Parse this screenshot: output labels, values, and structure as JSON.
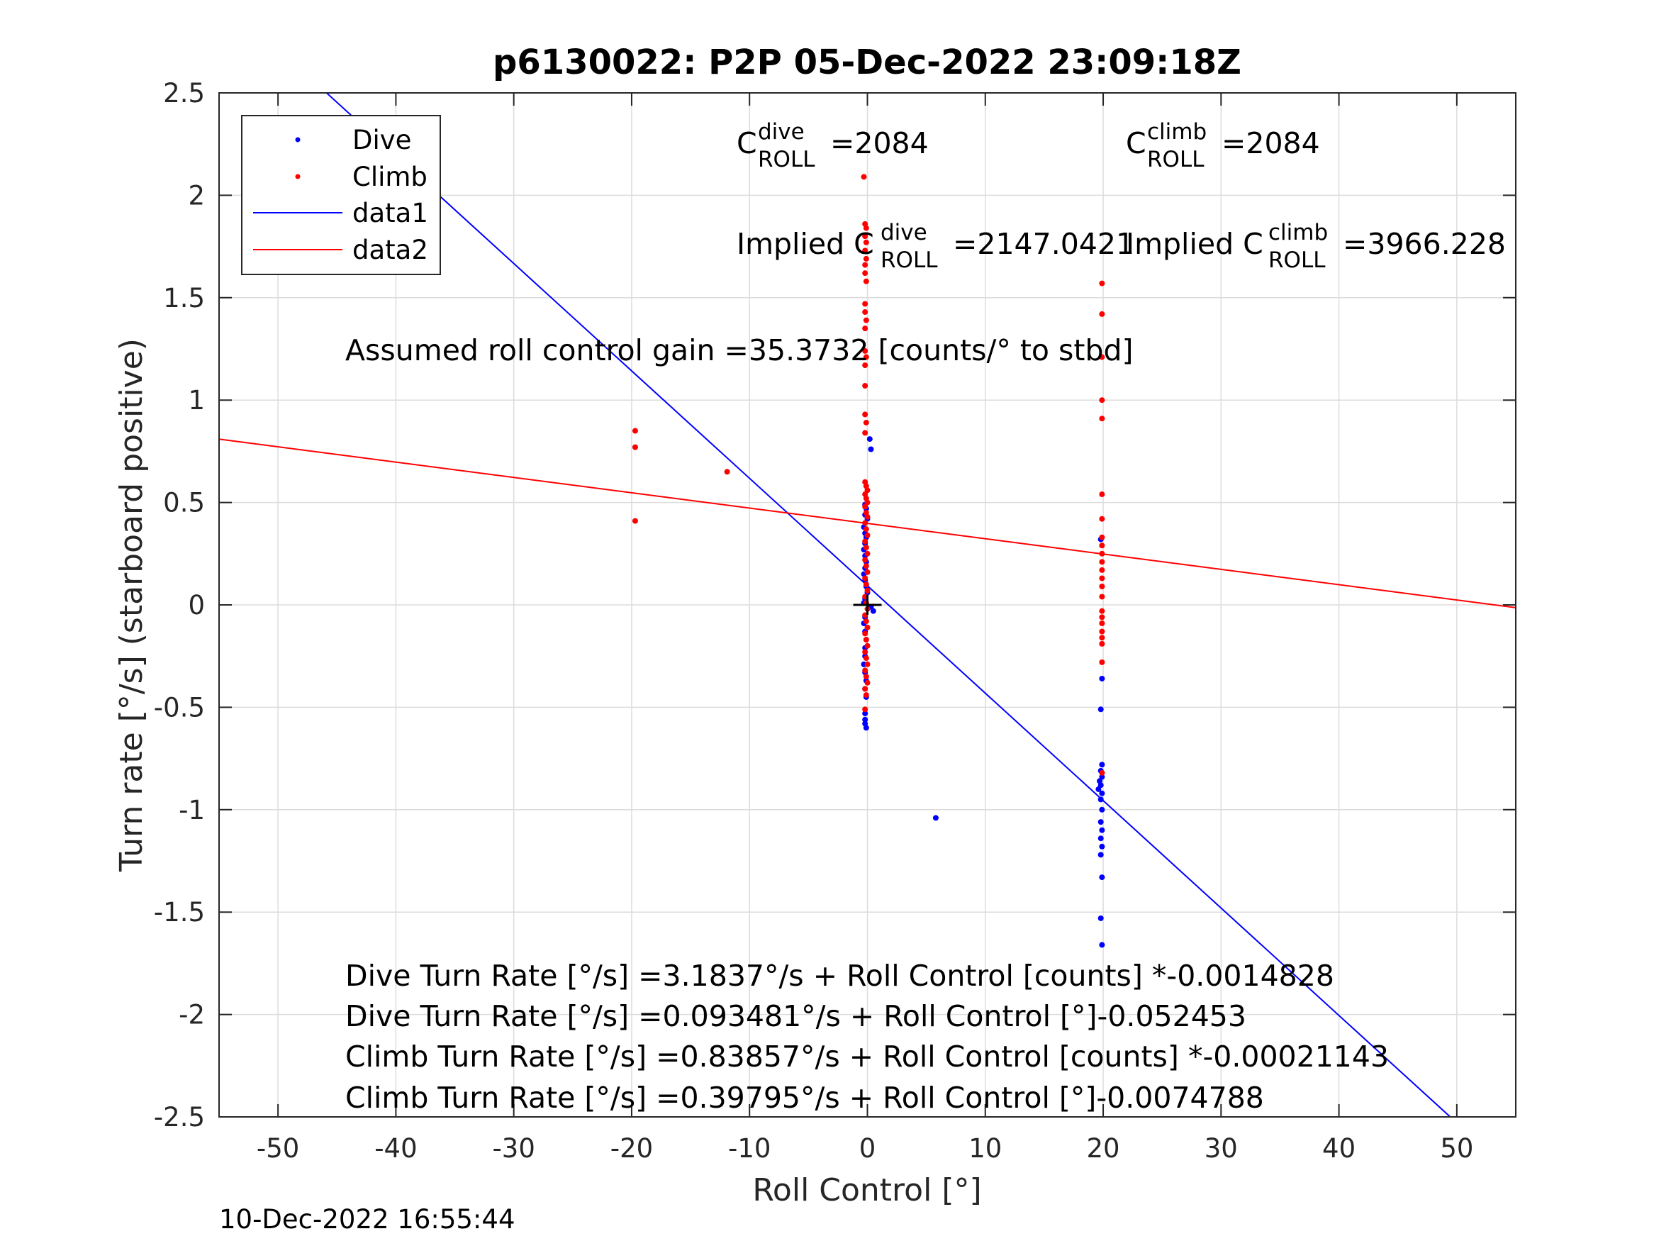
{
  "chart_data": {
    "type": "scatter",
    "title": "p6130022: P2P 05-Dec-2022 23:09:18Z",
    "xlabel": "Roll Control [°]",
    "ylabel": "Turn rate [°/s] (starboard positive)",
    "xlim": [
      -55,
      55
    ],
    "ylim": [
      -2.5,
      2.5
    ],
    "xticks": [
      -50,
      -40,
      -30,
      -20,
      -10,
      0,
      10,
      20,
      30,
      40,
      50
    ],
    "yticks": [
      2.5,
      2,
      1.5,
      1,
      0.5,
      0,
      -0.5,
      -1,
      -1.5,
      -2,
      -2.5
    ],
    "grid": true,
    "legend_position": "top-left",
    "legend": [
      {
        "label": "Dive",
        "kind": "marker",
        "color": "#0000ff"
      },
      {
        "label": "Climb",
        "kind": "marker",
        "color": "#ff0000"
      },
      {
        "label": "data1",
        "kind": "line",
        "color": "#0000ff"
      },
      {
        "label": "data2",
        "kind": "line",
        "color": "#ff0000"
      }
    ],
    "series": [
      {
        "name": "Dive",
        "mode": "markers",
        "color": "#0000ff",
        "points": [
          [
            -0.2,
            0.49
          ],
          [
            -0.1,
            0.47
          ],
          [
            -0.2,
            0.44
          ],
          [
            0.0,
            0.42
          ],
          [
            -0.3,
            0.38
          ],
          [
            -0.2,
            0.35
          ],
          [
            -0.1,
            0.33
          ],
          [
            -0.2,
            0.3
          ],
          [
            -0.3,
            0.27
          ],
          [
            -0.2,
            0.24
          ],
          [
            -0.1,
            0.21
          ],
          [
            -0.2,
            0.18
          ],
          [
            -0.3,
            0.15
          ],
          [
            -0.2,
            0.12
          ],
          [
            -0.1,
            0.09
          ],
          [
            0.0,
            0.06
          ],
          [
            -0.2,
            0.03
          ],
          [
            -0.3,
            0.01
          ],
          [
            0.3,
            -0.01
          ],
          [
            0.5,
            -0.03
          ],
          [
            -0.2,
            -0.06
          ],
          [
            -0.3,
            -0.09
          ],
          [
            -0.2,
            -0.13
          ],
          [
            -0.1,
            -0.17
          ],
          [
            -0.2,
            -0.21
          ],
          [
            -0.2,
            -0.25
          ],
          [
            -0.3,
            -0.29
          ],
          [
            -0.2,
            -0.33
          ],
          [
            -0.1,
            -0.37
          ],
          [
            -0.2,
            -0.41
          ],
          [
            -0.1,
            -0.45
          ],
          [
            -0.2,
            -0.53
          ],
          [
            -0.2,
            -0.56
          ],
          [
            -0.2,
            -0.58
          ],
          [
            -0.1,
            -0.6
          ],
          [
            0.2,
            0.81
          ],
          [
            0.3,
            0.76
          ],
          [
            5.8,
            -1.04
          ],
          [
            19.8,
            0.32
          ],
          [
            19.9,
            -0.36
          ],
          [
            19.8,
            -0.51
          ],
          [
            19.9,
            -0.78
          ],
          [
            19.8,
            -0.81
          ],
          [
            19.9,
            -0.84
          ],
          [
            19.7,
            -0.86
          ],
          [
            19.8,
            -0.88
          ],
          [
            19.6,
            -0.9
          ],
          [
            19.9,
            -0.92
          ],
          [
            19.8,
            -0.95
          ],
          [
            19.9,
            -1.0
          ],
          [
            19.8,
            -1.06
          ],
          [
            19.9,
            -1.1
          ],
          [
            19.8,
            -1.14
          ],
          [
            19.9,
            -1.18
          ],
          [
            19.8,
            -1.22
          ],
          [
            19.9,
            -1.33
          ],
          [
            19.8,
            -1.53
          ],
          [
            19.9,
            -1.66
          ]
        ]
      },
      {
        "name": "Climb",
        "mode": "markers",
        "color": "#ff0000",
        "points": [
          [
            -19.7,
            0.85
          ],
          [
            -19.7,
            0.77
          ],
          [
            -19.7,
            0.41
          ],
          [
            -11.9,
            0.65
          ],
          [
            -0.3,
            2.09
          ],
          [
            -0.2,
            1.86
          ],
          [
            -0.1,
            1.84
          ],
          [
            -0.2,
            1.8
          ],
          [
            -0.1,
            1.77
          ],
          [
            -0.2,
            1.73
          ],
          [
            -0.1,
            1.69
          ],
          [
            -0.2,
            1.66
          ],
          [
            -0.2,
            1.62
          ],
          [
            -0.1,
            1.58
          ],
          [
            -0.2,
            1.47
          ],
          [
            -0.2,
            1.43
          ],
          [
            -0.1,
            1.39
          ],
          [
            -0.2,
            1.35
          ],
          [
            -0.2,
            1.24
          ],
          [
            -0.1,
            1.21
          ],
          [
            -0.2,
            1.17
          ],
          [
            -0.2,
            1.07
          ],
          [
            -0.2,
            0.93
          ],
          [
            -0.1,
            0.89
          ],
          [
            -0.2,
            0.84
          ],
          [
            -0.2,
            0.6
          ],
          [
            -0.1,
            0.58
          ],
          [
            0.0,
            0.56
          ],
          [
            -0.2,
            0.54
          ],
          [
            -0.1,
            0.52
          ],
          [
            0.0,
            0.5
          ],
          [
            -0.2,
            0.48
          ],
          [
            -0.1,
            0.45
          ],
          [
            0.0,
            0.43
          ],
          [
            -0.2,
            0.4
          ],
          [
            -0.1,
            0.37
          ],
          [
            0.0,
            0.34
          ],
          [
            -0.2,
            0.31
          ],
          [
            -0.1,
            0.28
          ],
          [
            0.0,
            0.25
          ],
          [
            -0.2,
            0.22
          ],
          [
            -0.1,
            0.19
          ],
          [
            0.0,
            0.16
          ],
          [
            -0.2,
            0.13
          ],
          [
            -0.1,
            0.1
          ],
          [
            0.0,
            0.07
          ],
          [
            -0.2,
            0.04
          ],
          [
            -0.1,
            0.01
          ],
          [
            0.0,
            -0.02
          ],
          [
            -0.2,
            -0.05
          ],
          [
            -0.1,
            -0.08
          ],
          [
            0.0,
            -0.11
          ],
          [
            -0.2,
            -0.14
          ],
          [
            -0.1,
            -0.17
          ],
          [
            0.0,
            -0.2
          ],
          [
            -0.2,
            -0.23
          ],
          [
            -0.1,
            -0.26
          ],
          [
            0.0,
            -0.29
          ],
          [
            -0.2,
            -0.32
          ],
          [
            -0.1,
            -0.35
          ],
          [
            0.0,
            -0.38
          ],
          [
            -0.2,
            -0.41
          ],
          [
            -0.1,
            -0.44
          ],
          [
            -0.2,
            -0.51
          ],
          [
            19.9,
            1.57
          ],
          [
            19.9,
            1.42
          ],
          [
            19.9,
            1.21
          ],
          [
            19.9,
            1.0
          ],
          [
            19.9,
            0.91
          ],
          [
            19.9,
            0.54
          ],
          [
            19.9,
            0.42
          ],
          [
            19.9,
            0.33
          ],
          [
            19.9,
            0.29
          ],
          [
            19.9,
            0.25
          ],
          [
            19.9,
            0.21
          ],
          [
            19.9,
            0.17
          ],
          [
            19.9,
            0.13
          ],
          [
            19.9,
            0.09
          ],
          [
            19.9,
            0.04
          ],
          [
            19.9,
            -0.03
          ],
          [
            19.9,
            -0.06
          ],
          [
            19.9,
            -0.09
          ],
          [
            19.9,
            -0.13
          ],
          [
            19.9,
            -0.16
          ],
          [
            19.9,
            -0.19
          ],
          [
            19.9,
            -0.28
          ],
          [
            19.9,
            -0.82
          ]
        ]
      },
      {
        "name": "data1",
        "mode": "line",
        "color": "#0000ff",
        "intercept": 0.093481,
        "slope": -0.052453,
        "x": [
          -55,
          55
        ]
      },
      {
        "name": "data2",
        "mode": "line",
        "color": "#ff0000",
        "intercept": 0.39795,
        "slope": -0.0074788,
        "x": [
          -55,
          55
        ]
      }
    ],
    "crosshair": {
      "x": 0,
      "y": 0,
      "color": "#000000"
    },
    "annotations": {
      "c_dive": {
        "prefix": "C",
        "sup": "dive",
        "sub": "ROLL",
        "value": "=2084"
      },
      "c_climb": {
        "prefix": "C",
        "sup": "climb",
        "sub": "ROLL",
        "value": "=2084"
      },
      "implied_dive": {
        "prefix": "Implied C",
        "sup": "dive",
        "sub": "ROLL",
        "value": "=2147.0421"
      },
      "implied_climb": {
        "prefix": "Implied C",
        "sup": "climb",
        "sub": "ROLL",
        "value": "=3966.228"
      },
      "gain": "Assumed roll control gain =35.3732 [counts/° to stbd]",
      "equations": [
        "Dive Turn Rate [°/s] =3.1837°/s + Roll Control [counts] *-0.0014828",
        "Dive Turn Rate [°/s] =0.093481°/s + Roll Control [°]-0.052453",
        "Climb Turn Rate [°/s] =0.83857°/s + Roll Control [counts] *-0.00021143",
        "Climb Turn Rate [°/s] =0.39795°/s + Roll Control [°]-0.0074788"
      ]
    }
  },
  "footer": {
    "timestamp": "10-Dec-2022 16:55:44"
  }
}
